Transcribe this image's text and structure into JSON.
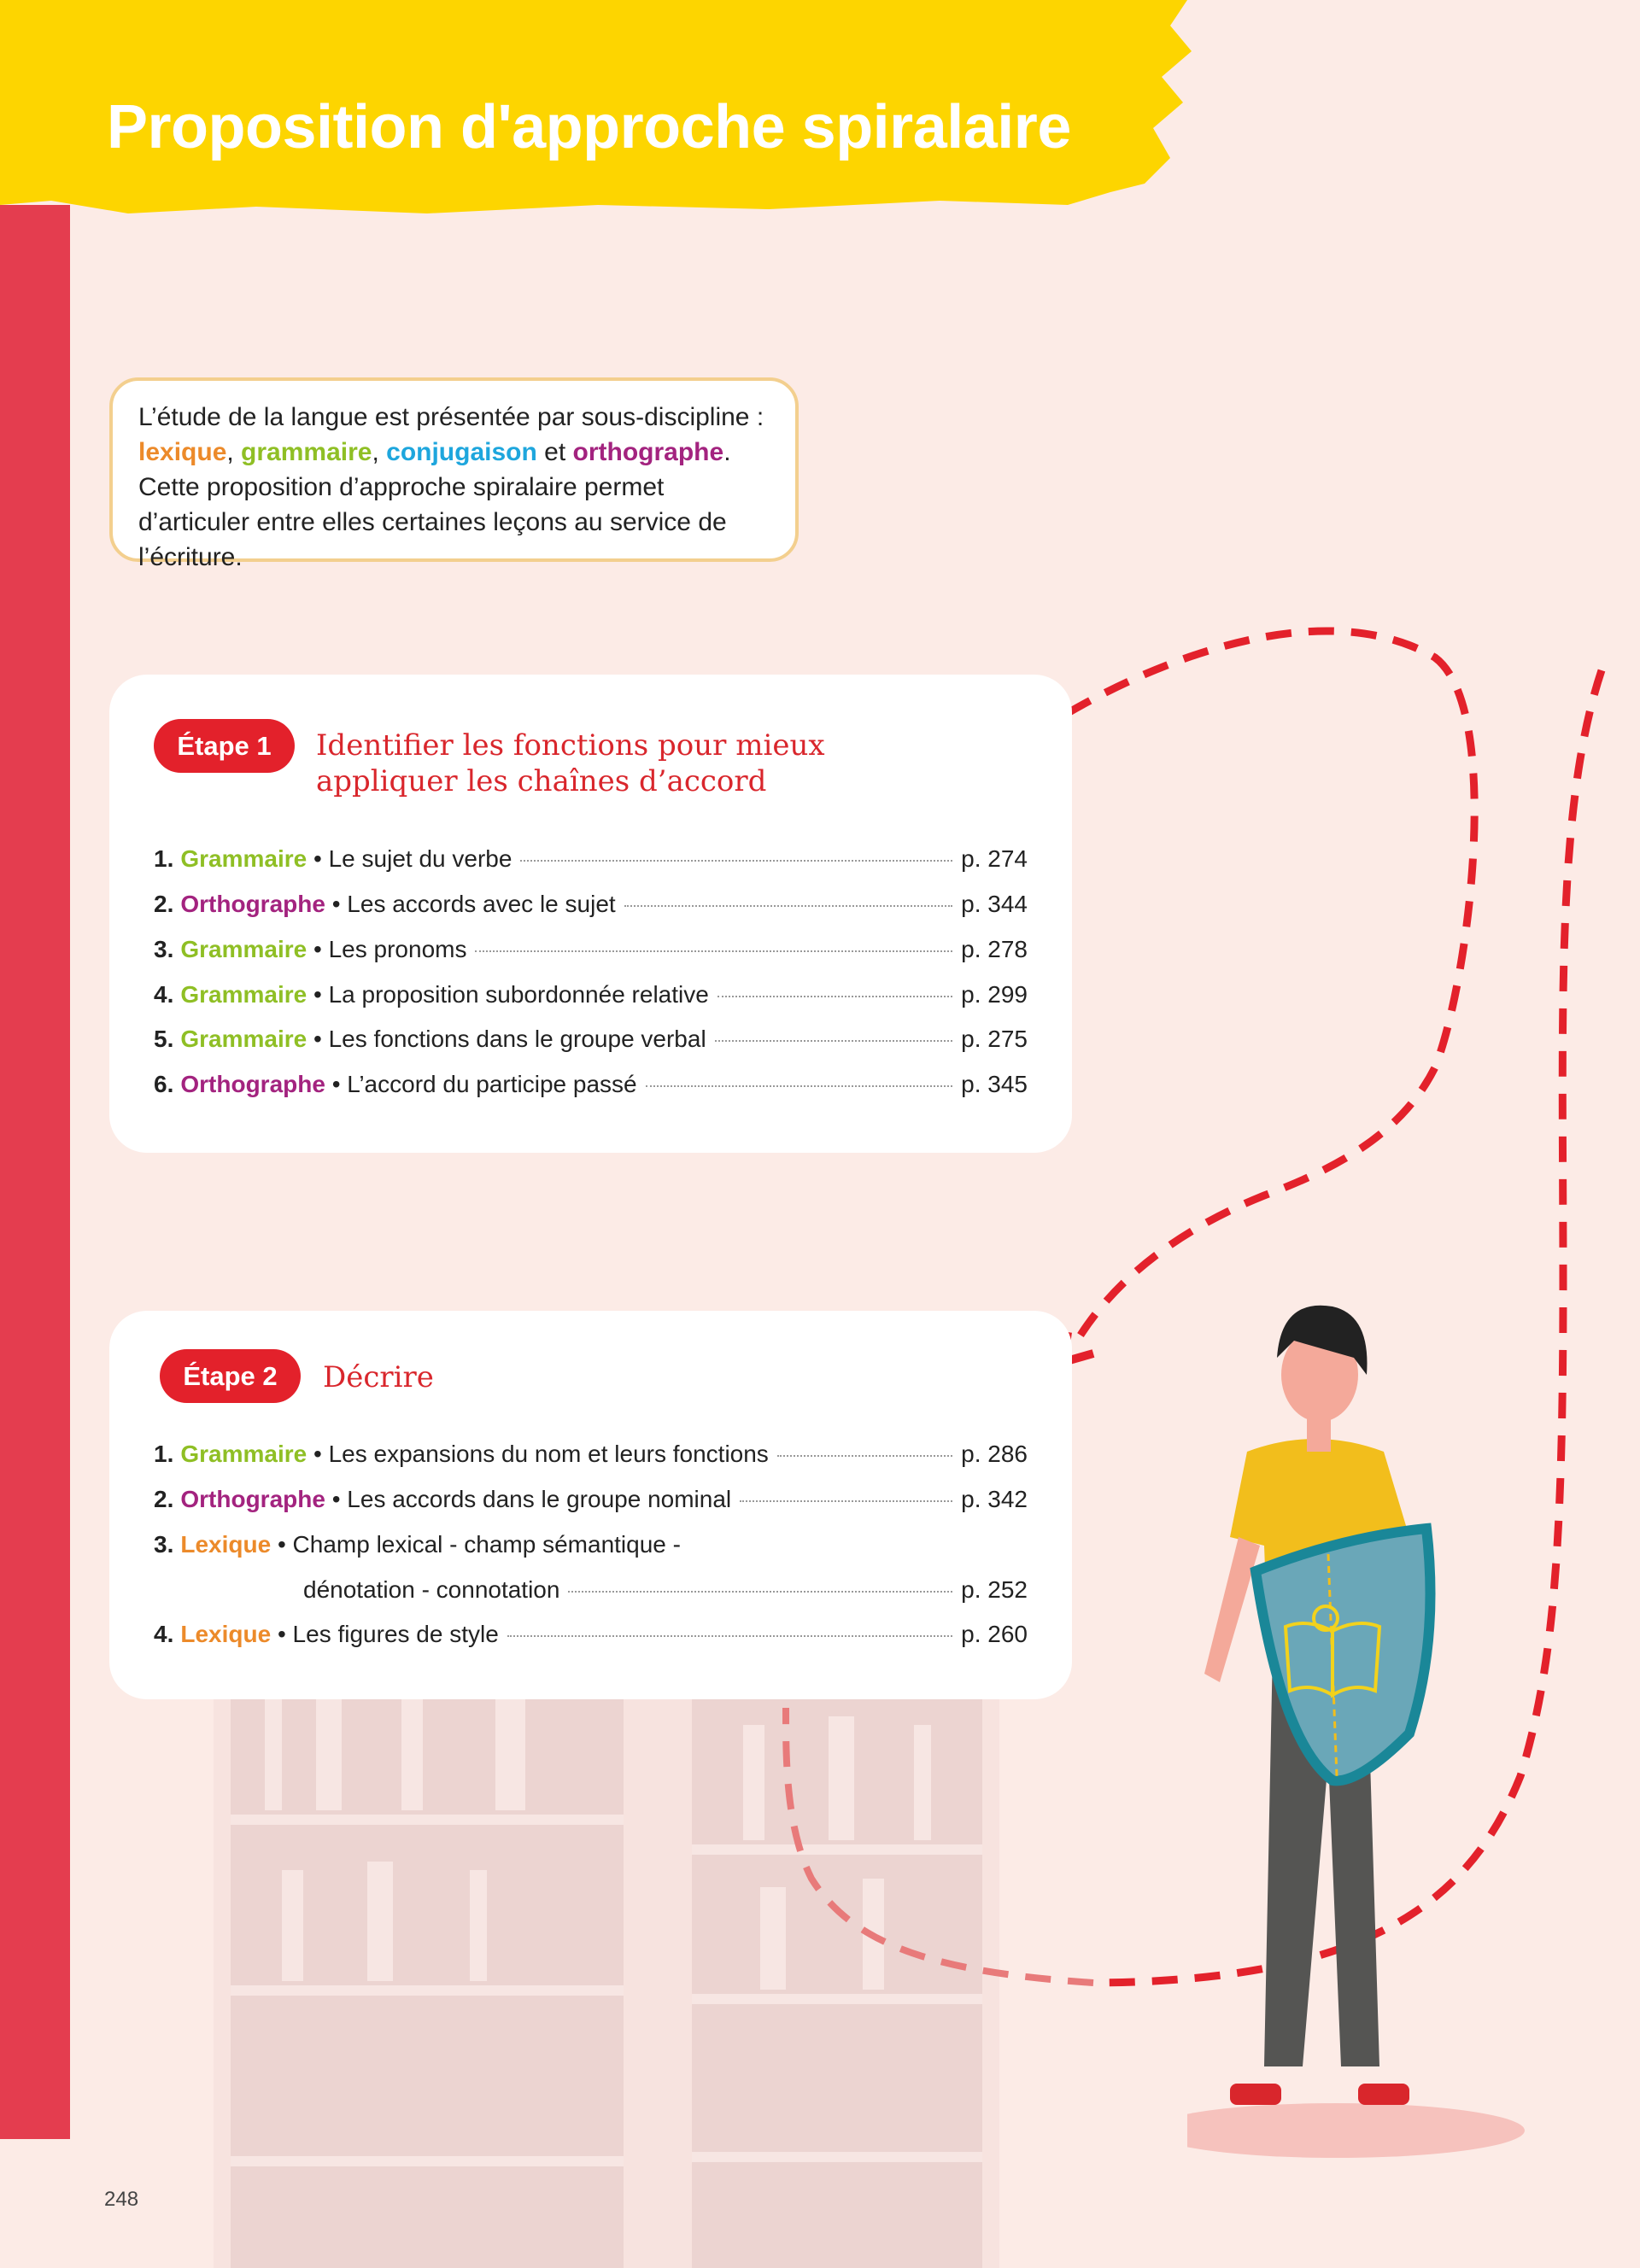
{
  "title": "Proposition d'approche spiralaire",
  "intro": {
    "text_1": "L’étude de la langue est présentée par sous-discipline :",
    "lexique": "lexique",
    "grammaire": "grammaire",
    "conjugaison": "conjugaison",
    "et": " et ",
    "orthographe": "orthographe",
    "text_2": ". Cette proposition d’approche spiralaire permet d’articuler entre elles certaines leçons au service de l’écriture."
  },
  "colors": {
    "lexique": "#ec8a2a",
    "grammaire": "#8fbf25",
    "conjugaison": "#1ea6dd",
    "orthographe": "#a3237f",
    "accent": "#e3212b",
    "banner": "#fdd500"
  },
  "etape1": {
    "label": "Étape 1",
    "title_1": "Identifier les fonctions pour mieux",
    "title_2": "appliquer les chaînes d’accord",
    "items": [
      {
        "num": "1.",
        "cat": "Grammaire",
        "text": "Le sujet du verbe",
        "page": "p. 274"
      },
      {
        "num": "2.",
        "cat": "Orthographe",
        "text": "Les accords avec le sujet",
        "page": "p. 344"
      },
      {
        "num": "3.",
        "cat": "Grammaire",
        "text": "Les pronoms",
        "page": "p. 278"
      },
      {
        "num": "4.",
        "cat": "Grammaire",
        "text": "La proposition subordonnée relative",
        "page": "p. 299"
      },
      {
        "num": "5.",
        "cat": "Grammaire",
        "text": "Les fonctions dans le groupe verbal",
        "page": "p. 275"
      },
      {
        "num": "6.",
        "cat": "Orthographe",
        "text": "L’accord du participe passé",
        "page": "p. 345"
      }
    ]
  },
  "etape2": {
    "label": "Étape 2",
    "title": "Décrire",
    "items": [
      {
        "num": "1.",
        "cat": "Grammaire",
        "text": "Les expansions du nom et leurs fonctions",
        "page": "p. 286"
      },
      {
        "num": "2.",
        "cat": "Orthographe",
        "text": "Les accords dans le groupe nominal",
        "page": "p. 342"
      },
      {
        "num": "3.",
        "cat": "Lexique",
        "text": "Champ lexical - champ sémantique -",
        "text_2": "dénotation - connotation",
        "page": "p. 252"
      },
      {
        "num": "4.",
        "cat": "Lexique",
        "text": "Les figures de style",
        "page": "p. 260"
      }
    ]
  },
  "page_number": "248"
}
